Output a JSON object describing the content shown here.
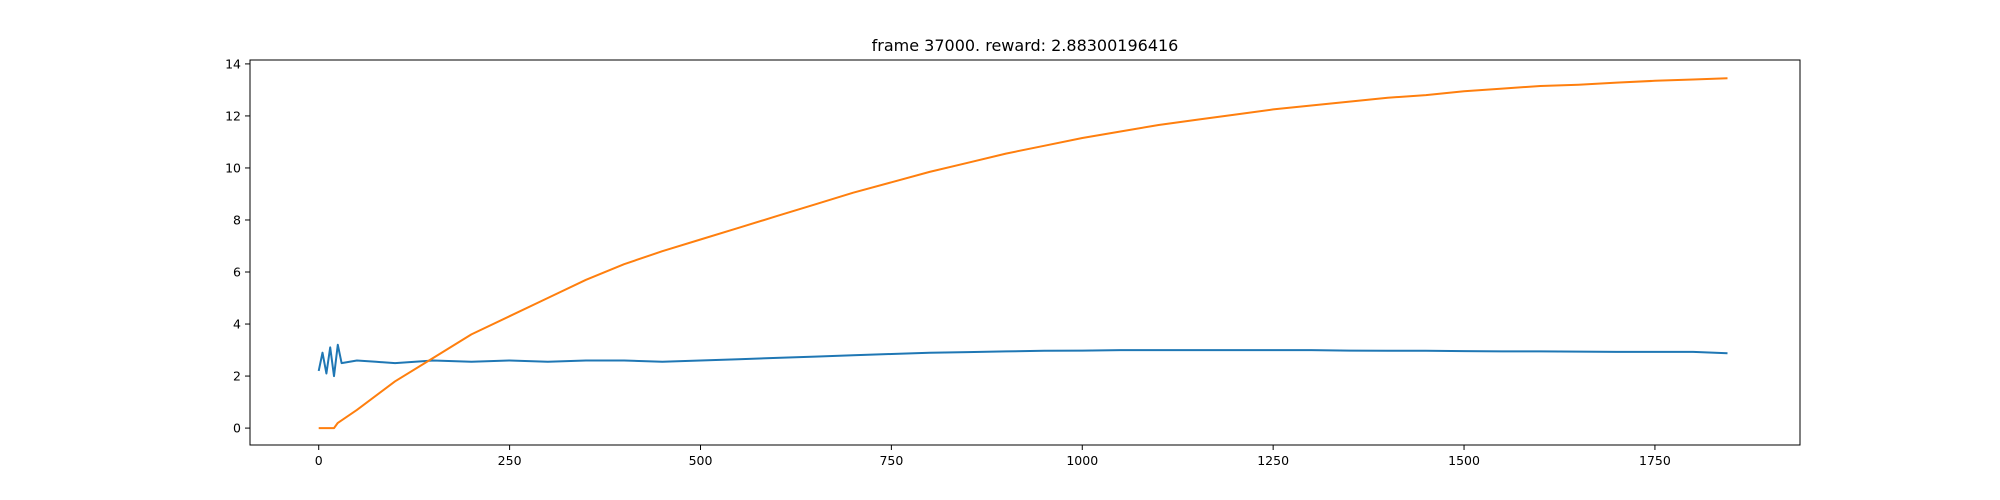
{
  "chart_data": {
    "type": "line",
    "title": "frame 37000. reward: 2.88300196416",
    "xlabel": "",
    "ylabel": "",
    "xlim": [
      -90,
      1940
    ],
    "ylim": [
      -0.65,
      14.15
    ],
    "xticks": [
      0,
      250,
      500,
      750,
      1000,
      1250,
      1500,
      1750
    ],
    "yticks": [
      0,
      2,
      4,
      6,
      8,
      10,
      12,
      14
    ],
    "grid": false,
    "series": [
      {
        "color": "#1f77b4",
        "x": [
          0,
          5,
          10,
          15,
          20,
          25,
          30,
          50,
          75,
          100,
          150,
          200,
          250,
          300,
          350,
          400,
          450,
          500,
          550,
          600,
          650,
          700,
          750,
          800,
          850,
          900,
          950,
          1000,
          1050,
          1100,
          1150,
          1200,
          1250,
          1300,
          1350,
          1400,
          1450,
          1500,
          1550,
          1600,
          1650,
          1700,
          1750,
          1800,
          1845
        ],
        "y": [
          2.2,
          2.9,
          2.1,
          3.1,
          2.0,
          3.2,
          2.5,
          2.6,
          2.55,
          2.5,
          2.6,
          2.55,
          2.6,
          2.55,
          2.6,
          2.6,
          2.55,
          2.6,
          2.65,
          2.7,
          2.75,
          2.8,
          2.85,
          2.9,
          2.92,
          2.95,
          2.97,
          2.98,
          3.0,
          3.0,
          3.0,
          3.0,
          3.0,
          3.0,
          2.98,
          2.97,
          2.97,
          2.96,
          2.95,
          2.95,
          2.94,
          2.93,
          2.93,
          2.93,
          2.88
        ]
      },
      {
        "color": "#ff7f0e",
        "x": [
          0,
          20,
          25,
          50,
          100,
          150,
          200,
          250,
          300,
          350,
          400,
          450,
          500,
          550,
          600,
          650,
          700,
          750,
          800,
          850,
          900,
          950,
          1000,
          1050,
          1100,
          1150,
          1200,
          1250,
          1300,
          1350,
          1400,
          1450,
          1500,
          1550,
          1600,
          1650,
          1700,
          1750,
          1800,
          1845
        ],
        "y": [
          0.0,
          0.0,
          0.2,
          0.7,
          1.8,
          2.7,
          3.6,
          4.3,
          5.0,
          5.7,
          6.3,
          6.8,
          7.25,
          7.7,
          8.15,
          8.6,
          9.05,
          9.45,
          9.85,
          10.2,
          10.55,
          10.85,
          11.15,
          11.4,
          11.65,
          11.85,
          12.05,
          12.25,
          12.4,
          12.55,
          12.7,
          12.8,
          12.95,
          13.05,
          13.15,
          13.2,
          13.28,
          13.35,
          13.4,
          13.45
        ]
      }
    ]
  }
}
